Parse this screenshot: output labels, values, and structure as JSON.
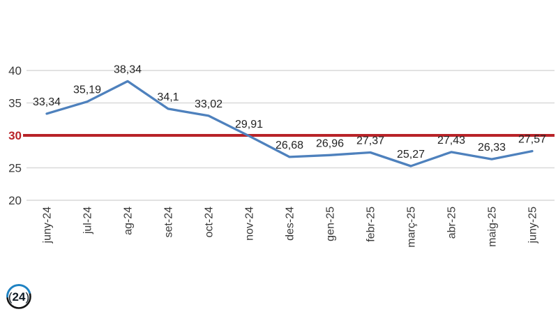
{
  "page": {
    "background": "#ffffff"
  },
  "logo": {
    "paren_left": "(",
    "text": "24",
    "paren_right": ")",
    "ring_color": "#141414",
    "arc_color": "#1e83c4",
    "text_color": "#0f1a24"
  },
  "chart_data": {
    "type": "line",
    "title": "",
    "xlabel": "",
    "ylabel": "",
    "categories": [
      "juny-24",
      "jul-24",
      "ag-24",
      "set-24",
      "oct-24",
      "nov-24",
      "des-24",
      "gen-25",
      "febr-25",
      "març-25",
      "abr-25",
      "maig-25",
      "juny-25"
    ],
    "values": [
      33.34,
      35.19,
      38.34,
      34.1,
      33.02,
      29.91,
      26.68,
      26.96,
      27.37,
      25.27,
      27.43,
      26.33,
      27.57
    ],
    "value_labels": [
      "33,34",
      "35,19",
      "38,34",
      "34,1",
      "33,02",
      "29,91",
      "26,68",
      "26,96",
      "27,37",
      "25,27",
      "27,43",
      "26,33",
      "27,57"
    ],
    "ylim": [
      20,
      40
    ],
    "yticks": [
      20,
      25,
      30,
      35,
      40
    ],
    "reference_line": {
      "value": 30,
      "label": "30",
      "color": "#b82328"
    },
    "grid": true,
    "legend": "none",
    "x_tick_rotation": -90,
    "decimal_separator": ",",
    "series_color": "#4e81bd",
    "grid_color": "#d9d9d9",
    "tick_color": "#3a3a3a",
    "data_label_color": "#222222"
  }
}
